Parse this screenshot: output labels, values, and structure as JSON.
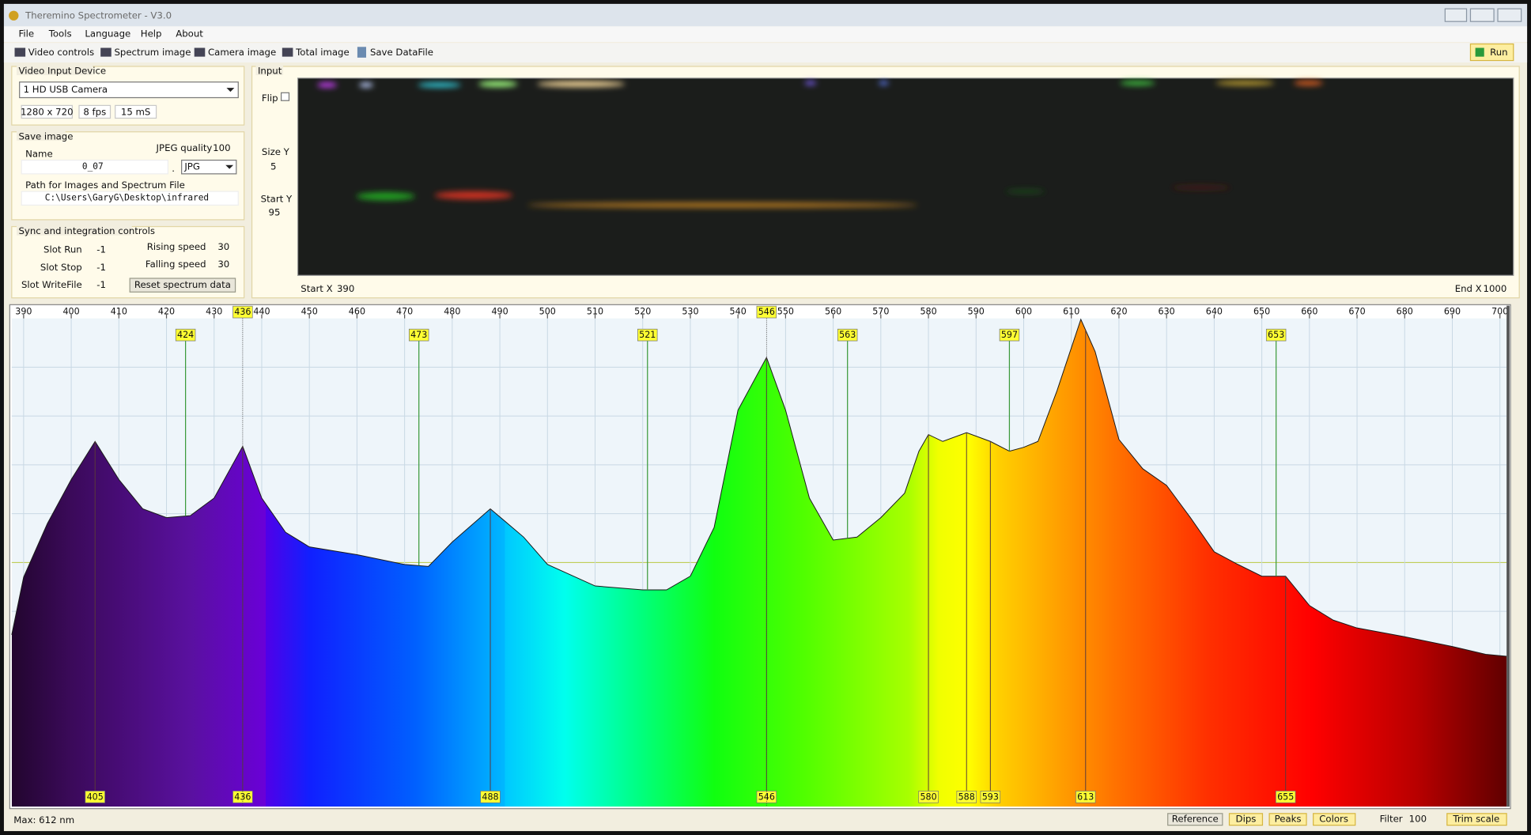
{
  "window": {
    "title": "Theremino Spectrometer - V3.0"
  },
  "menu": [
    "File",
    "Tools",
    "Language",
    "Help",
    "About"
  ],
  "toolbar": {
    "items": [
      "Video controls",
      "Spectrum image",
      "Camera image",
      "Total image",
      "Save DataFile"
    ],
    "run": "Run"
  },
  "video_input": {
    "title": "Video Input Device",
    "device": "1 HD USB Camera",
    "resolution": "1280 x 720",
    "fps": "8 fps",
    "exposure": "15 mS"
  },
  "save_image": {
    "title": "Save image",
    "name_label": "Name",
    "name": "0_07",
    "jpeg_quality_label": "JPEG quality",
    "jpeg_quality": 100,
    "dot": ".",
    "format": "JPG",
    "path_label": "Path for Images and Spectrum File",
    "path": "C:\\Users\\GaryG\\Desktop\\infrared"
  },
  "sync": {
    "title": "Sync and integration controls",
    "slot_run_label": "Slot Run",
    "slot_run": -1,
    "slot_stop_label": "Slot Stop",
    "slot_stop": -1,
    "slot_writefile_label": "Slot WriteFile",
    "slot_writefile": -1,
    "rising_label": "Rising speed",
    "rising": 30,
    "falling_label": "Falling speed",
    "falling": 30,
    "reset": "Reset spectrum data"
  },
  "input": {
    "title": "Input",
    "flip_label": "Flip",
    "size_y_label": "Size Y",
    "size_y": 5,
    "start_y_label": "Start Y",
    "start_y": 95,
    "start_x_label": "Start X",
    "start_x": 390,
    "end_x_label": "End X",
    "end_x": 1000
  },
  "spectrum": {
    "type": "area",
    "xlim": [
      387.5,
      701.4
    ],
    "ylim": [
      0,
      100
    ],
    "xticks": [
      390,
      400,
      410,
      420,
      430,
      440,
      450,
      460,
      470,
      480,
      490,
      500,
      510,
      520,
      530,
      540,
      550,
      560,
      570,
      580,
      590,
      600,
      610,
      620,
      630,
      640,
      650,
      660,
      670,
      680,
      690,
      700
    ],
    "reference_marks": [
      436,
      546
    ],
    "peaks_top": [
      424,
      473,
      521,
      563,
      597,
      653
    ],
    "peaks_bottom": [
      405,
      436,
      488,
      546,
      580,
      588,
      593,
      613,
      655
    ],
    "colors": {
      "outline": "#1a1a1a",
      "top_peaks": "#3c9a3c",
      "bottom_peaks": "#5a3a3a",
      "reference": "#444444",
      "label_fill": "#ffff33"
    },
    "x": [
      387.5,
      390,
      395,
      400,
      405,
      410,
      415,
      420,
      425,
      430,
      436,
      440,
      445,
      450,
      460,
      470,
      475,
      480,
      488,
      495,
      500,
      510,
      520,
      525,
      530,
      535,
      540,
      546,
      550,
      555,
      560,
      565,
      570,
      575,
      578,
      580,
      583,
      588,
      593,
      597,
      600,
      603,
      607,
      612,
      615,
      620,
      625,
      630,
      635,
      640,
      645,
      650,
      655,
      660,
      665,
      670,
      680,
      690,
      697,
      701.4
    ],
    "values": [
      35.2,
      47,
      58,
      67,
      74.8,
      67,
      61,
      59.2,
      59.6,
      63.2,
      73.8,
      63.2,
      56.2,
      53.2,
      51.6,
      49.6,
      49.2,
      54.2,
      61,
      55.2,
      49.6,
      45.2,
      44.4,
      44.4,
      47.2,
      57.2,
      81.2,
      92,
      81.2,
      63.2,
      54.6,
      55.2,
      59.2,
      64.2,
      72.8,
      76.2,
      74.8,
      76.6,
      74.8,
      72.8,
      73.6,
      74.8,
      85.2,
      99.8,
      93.2,
      75.2,
      69.2,
      65.8,
      59.2,
      52.2,
      49.6,
      47.2,
      47.2,
      41.2,
      38.2,
      36.6,
      34.8,
      32.8,
      31.2,
      30.8
    ]
  },
  "status": {
    "max": "Max: 612 nm",
    "buttons": [
      "Reference",
      "Dips",
      "Peaks",
      "Colors"
    ],
    "filter_label": "Filter",
    "filter": 100,
    "trim": "Trim scale"
  }
}
